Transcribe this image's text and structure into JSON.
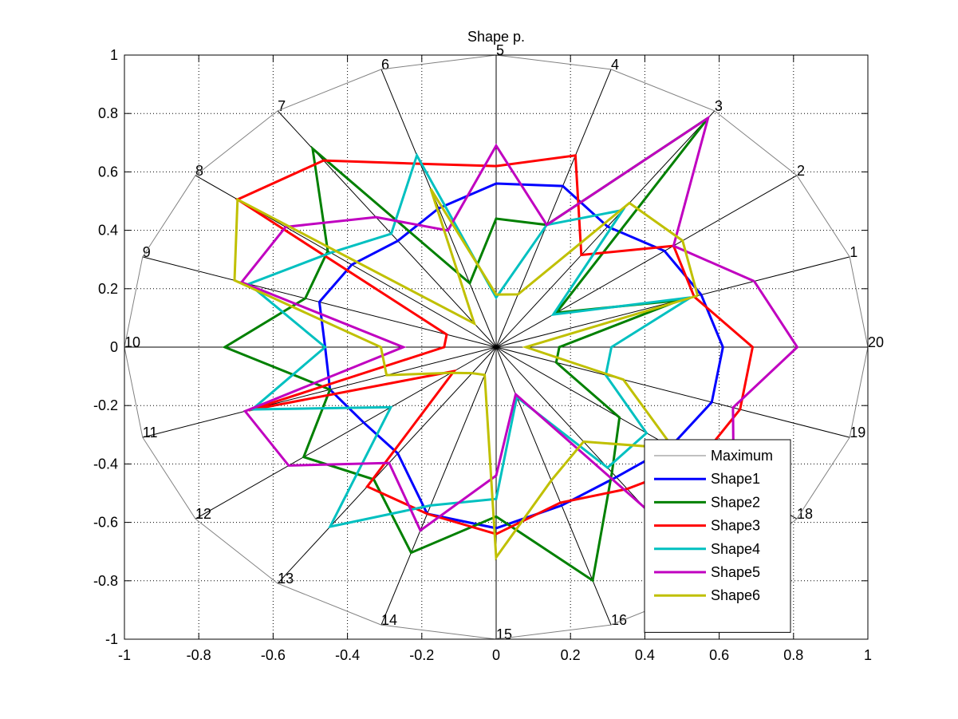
{
  "chart_data": {
    "type": "radar",
    "title": "Shape p.",
    "xlim": [
      -1,
      1
    ],
    "ylim": [
      -1,
      1
    ],
    "x_ticks": [
      "-1",
      "-0.8",
      "-0.6",
      "-0.4",
      "-0.2",
      "0",
      "0.2",
      "0.4",
      "0.6",
      "0.8",
      "1"
    ],
    "y_ticks": [
      "-1",
      "-0.8",
      "-0.6",
      "-0.4",
      "-0.2",
      "0",
      "0.2",
      "0.4",
      "0.6",
      "0.8",
      "1"
    ],
    "grid": true,
    "spokes": [
      "1",
      "2",
      "3",
      "4",
      "5",
      "6",
      "7",
      "8",
      "9",
      "10",
      "11",
      "12",
      "13",
      "14",
      "15",
      "16",
      "17",
      "18",
      "19",
      "20"
    ],
    "legend_position": "bottom-right",
    "series": [
      {
        "name": "Maximum",
        "color": "#808080",
        "values": [
          1,
          1,
          1,
          1,
          1,
          1,
          1,
          1,
          1,
          1,
          1,
          1,
          1,
          1,
          1,
          1,
          1,
          1,
          1,
          1
        ]
      },
      {
        "name": "Shape1",
        "color": "#0000ff",
        "values": [
          0.58,
          0.56,
          0.51,
          0.58,
          0.56,
          0.5,
          0.45,
          0.48,
          0.5,
          0.46,
          0.47,
          0.44,
          0.45,
          0.6,
          0.62,
          0.57,
          0.55,
          0.58,
          0.61,
          0.61
        ]
      },
      {
        "name": "Shape2",
        "color": "#008000",
        "values": [
          0.52,
          0.2,
          0.97,
          0.44,
          0.44,
          0.23,
          0.84,
          0.56,
          0.54,
          0.73,
          0.47,
          0.64,
          0.56,
          0.74,
          0.58,
          0.84,
          0.53,
          0.41,
          0.17,
          0.17
        ]
      },
      {
        "name": "Shape3",
        "color": "#ff0000",
        "values": [
          0.56,
          0.59,
          0.39,
          0.69,
          0.62,
          0.66,
          0.79,
          0.86,
          0.14,
          0.14,
          0.7,
          0.14,
          0.59,
          0.6,
          0.64,
          0.56,
          0.6,
          0.67,
          0.69,
          0.69
        ]
      },
      {
        "name": "Shape4",
        "color": "#00c0c0",
        "values": [
          0.55,
          0.19,
          0.58,
          0.44,
          0.17,
          0.69,
          0.48,
          0.55,
          0.7,
          0.46,
          0.69,
          0.35,
          0.76,
          0.57,
          0.52,
          0.18,
          0.51,
          0.5,
          0.31,
          0.31
        ]
      },
      {
        "name": "Shape5",
        "color": "#c000c0",
        "values": [
          0.73,
          0.59,
          0.97,
          0.44,
          0.69,
          0.42,
          0.55,
          0.7,
          0.72,
          0.25,
          0.71,
          0.69,
          0.49,
          0.66,
          0.44,
          0.17,
          0.68,
          0.79,
          0.67,
          0.81
        ]
      },
      {
        "name": "Shape6",
        "color": "#c0c000",
        "values": [
          0.57,
          0.62,
          0.61,
          0.19,
          0.18,
          0.57,
          0.1,
          0.86,
          0.74,
          0.31,
          0.31,
          0.15,
          0.11,
          0.1,
          0.72,
          0.48,
          0.4,
          0.59,
          0.36,
          0.08
        ]
      }
    ]
  }
}
